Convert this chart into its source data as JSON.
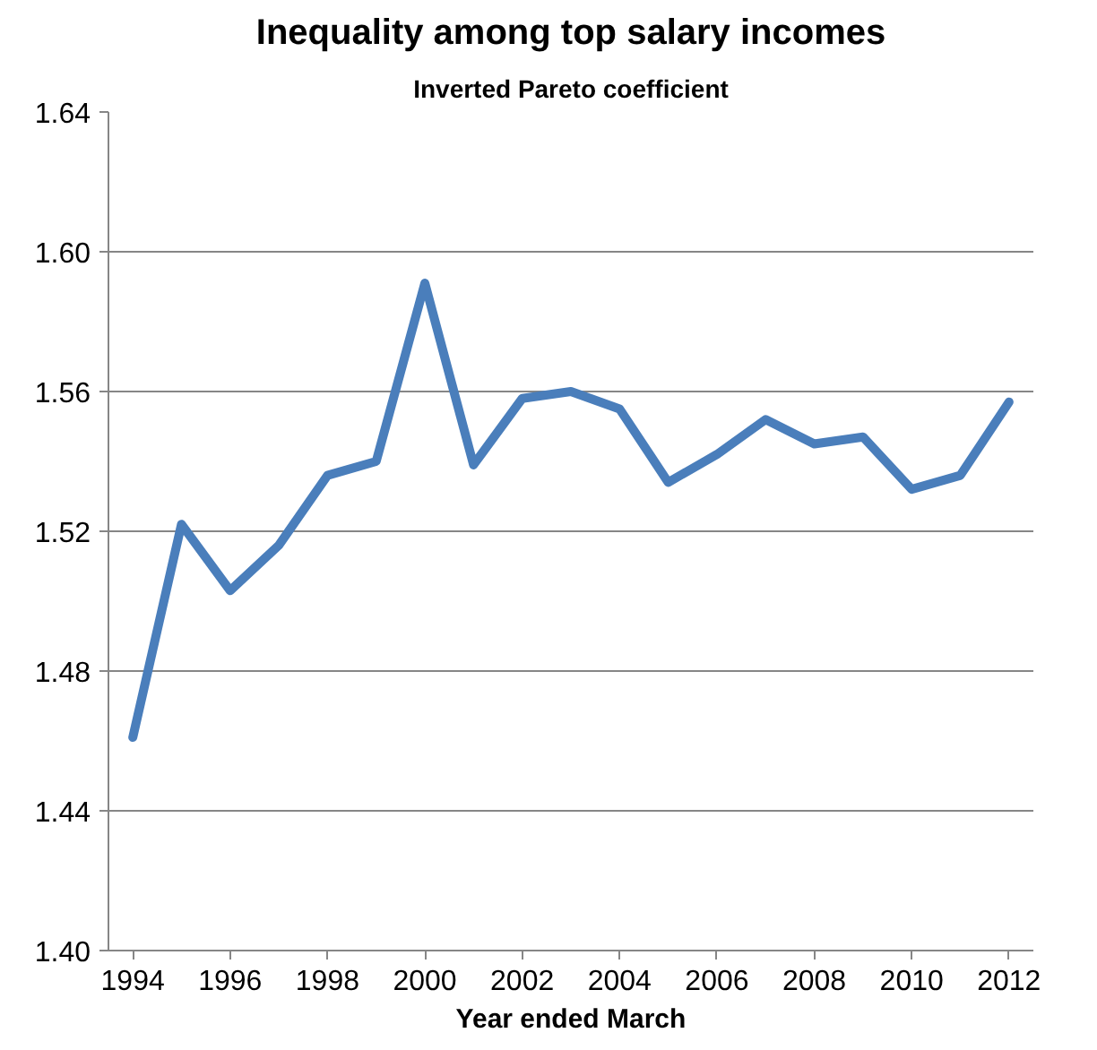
{
  "chart_data": {
    "type": "line",
    "title": "Inequality among top salary incomes",
    "subtitle": "Inverted Pareto coefficient",
    "xlabel": "Year ended March",
    "x": [
      1994,
      1995,
      1996,
      1997,
      1998,
      1999,
      2000,
      2001,
      2002,
      2003,
      2004,
      2005,
      2006,
      2007,
      2008,
      2009,
      2010,
      2011,
      2012
    ],
    "series": [
      {
        "color": "#4a7ebb",
        "values": [
          1.461,
          1.522,
          1.503,
          1.516,
          1.536,
          1.54,
          1.591,
          1.539,
          1.558,
          1.56,
          1.555,
          1.534,
          1.542,
          1.552,
          1.545,
          1.547,
          1.532,
          1.536,
          1.557
        ]
      }
    ],
    "xlim": [
      1993.5,
      2012.5
    ],
    "xticks": [
      1994,
      1996,
      1998,
      2000,
      2002,
      2004,
      2006,
      2008,
      2010,
      2012
    ],
    "ylim": [
      1.4,
      1.64
    ],
    "yticks": [
      {
        "value": 1.4,
        "label": "1.40"
      },
      {
        "value": 1.44,
        "label": "1.44"
      },
      {
        "value": 1.48,
        "label": "1.48"
      },
      {
        "value": 1.52,
        "label": "1.52"
      },
      {
        "value": 1.56,
        "label": "1.56"
      },
      {
        "value": 1.6,
        "label": "1.60"
      },
      {
        "value": 1.64,
        "label": "1.64"
      }
    ],
    "grid": "y",
    "marker": "none",
    "line_style": "solid"
  }
}
